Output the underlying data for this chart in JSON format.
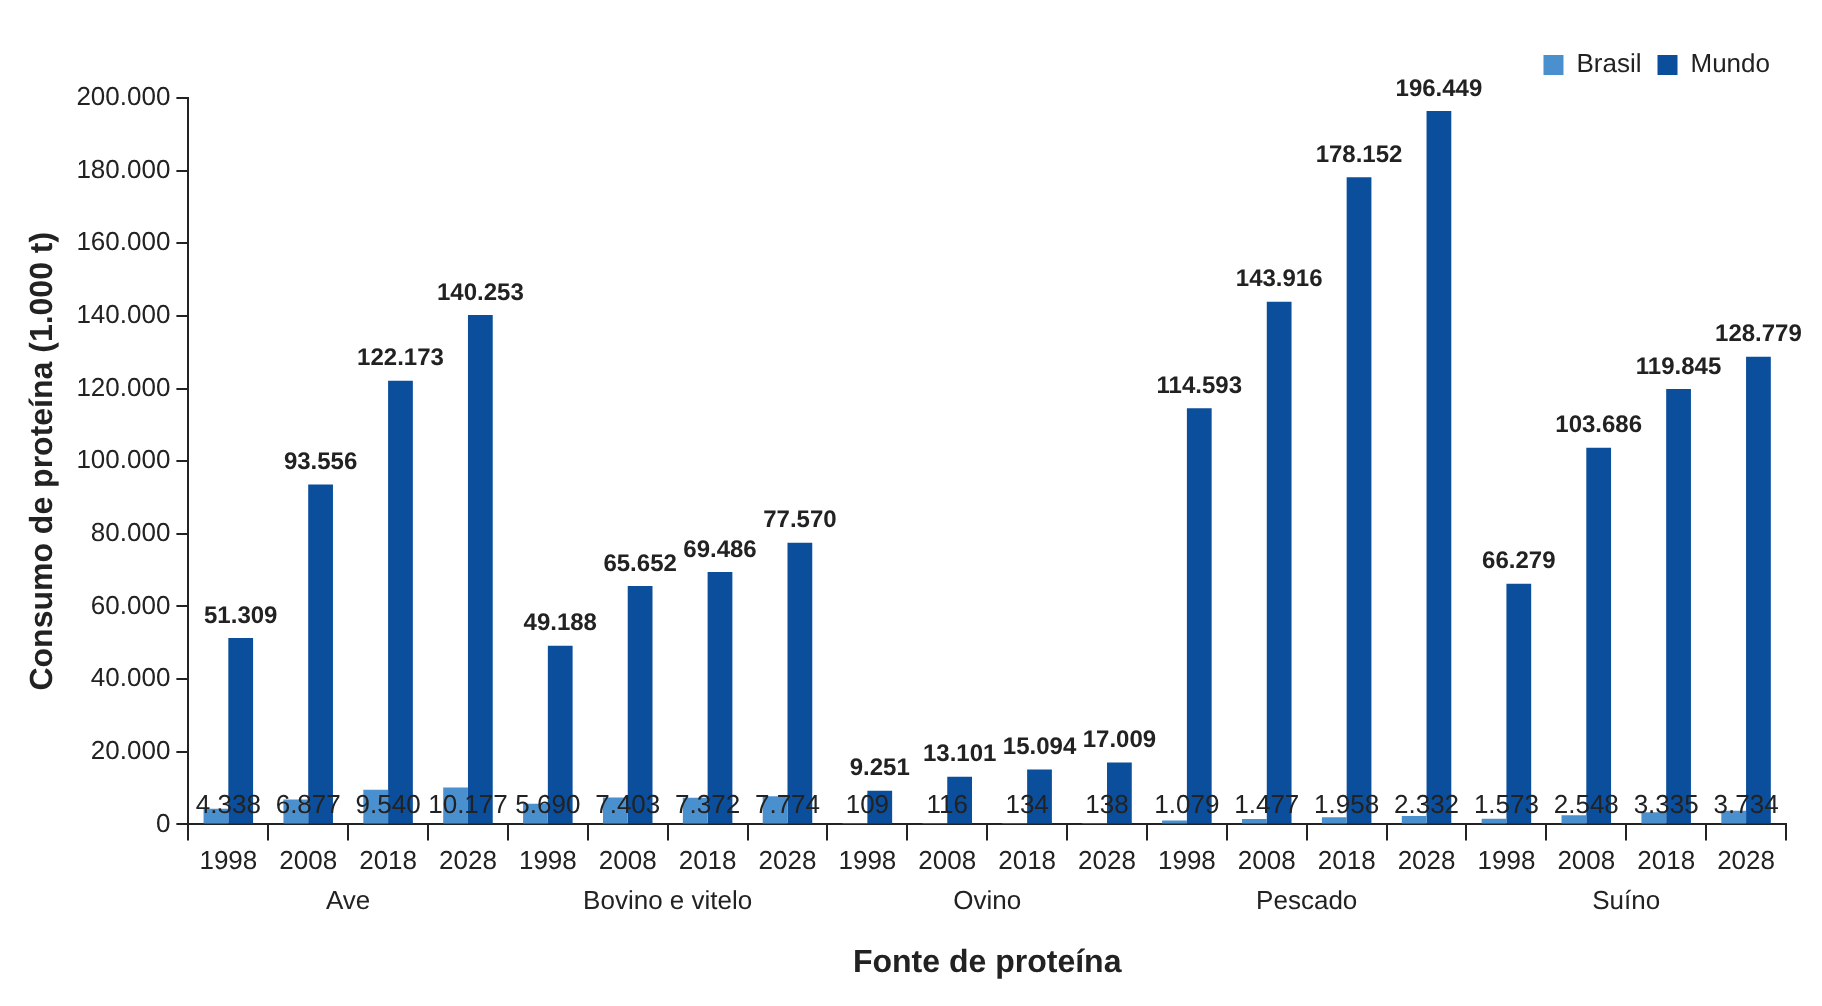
{
  "chart_data": {
    "type": "bar",
    "xlabel": "Fonte de proteína",
    "ylabel": "Consumo de proteína (1.000 t)",
    "categories": [
      "1998",
      "2008",
      "2018",
      "2028",
      "1998",
      "2008",
      "2018",
      "2028",
      "1998",
      "2008",
      "2018",
      "2028",
      "1998",
      "2008",
      "2018",
      "2028",
      "1998",
      "2008",
      "2018",
      "2028"
    ],
    "annotations": [
      "Ave",
      "Bovino e vitelo",
      "Ovino",
      "Pescado",
      "Suíno"
    ],
    "series": [
      {
        "name": "Brasil",
        "color": "#4a90cf",
        "values": [
          4338,
          6877,
          9540,
          10177,
          5690,
          7403,
          7372,
          7774,
          109,
          116,
          134,
          138,
          1079,
          1477,
          1958,
          2332,
          1573,
          2548,
          3335,
          3734
        ],
        "value_labels": [
          "4.338",
          "6.877",
          "9.540",
          "10.177",
          "5.690",
          "7.403",
          "7.372",
          "7.774",
          "109",
          "116",
          "134",
          "138",
          "1.079",
          "1.477",
          "1.958",
          "2.332",
          "1.573",
          "2.548",
          "3.335",
          "3.734"
        ]
      },
      {
        "name": "Mundo",
        "color": "#0b4f9c",
        "values": [
          51309,
          93556,
          122173,
          140253,
          49188,
          65652,
          69486,
          77570,
          9251,
          13101,
          15094,
          17009,
          114593,
          143916,
          178152,
          196449,
          66279,
          103686,
          119845,
          128779
        ],
        "value_labels": [
          "51.309",
          "93.556",
          "122.173",
          "140.253",
          "49.188",
          "65.652",
          "69.486",
          "77.570",
          "9.251",
          "13.101",
          "15.094",
          "17.009",
          "114.593",
          "143.916",
          "178.152",
          "196.449",
          "66.279",
          "103.686",
          "119.845",
          "128.779"
        ]
      }
    ],
    "ylim": [
      0,
      200000
    ],
    "yticks": [
      0,
      {
        "value": 20000,
        "label": "20.000"
      },
      {
        "value": 40000,
        "label": "40.000"
      },
      {
        "value": 60000,
        "label": "60.000"
      },
      {
        "value": 80000,
        "label": "80.000"
      },
      {
        "value": 100000,
        "label": "100.000"
      },
      {
        "value": 120000,
        "label": "120.000"
      },
      {
        "value": 140000,
        "label": "140.000"
      },
      {
        "value": 160000,
        "label": "160.000"
      },
      {
        "value": 180000,
        "label": "180.000"
      },
      {
        "value": 200000,
        "label": "200.000"
      }
    ],
    "grid": false,
    "legend": "top right"
  }
}
